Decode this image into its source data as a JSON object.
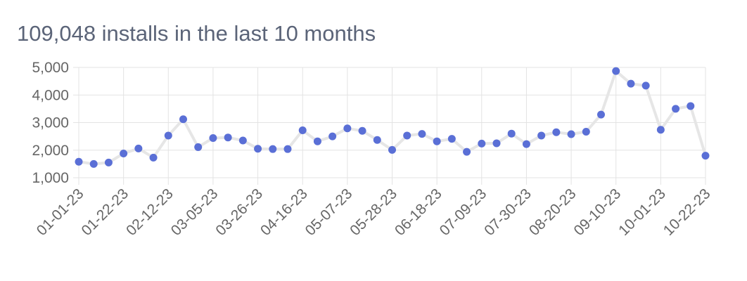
{
  "title": "109,048 installs in the last 10 months",
  "colors": {
    "title": "#5b6478",
    "point": "#5a6fd6",
    "line": "#e6e6e6",
    "grid": "#e3e3e3",
    "tick": "#666666"
  },
  "chart_data": {
    "type": "line",
    "title": "109,048 installs in the last 10 months",
    "xlabel": "",
    "ylabel": "",
    "ylim": [
      1000,
      5000
    ],
    "y_ticks": [
      1000,
      2000,
      3000,
      4000,
      5000
    ],
    "y_tick_labels": [
      "1,000",
      "2,000",
      "3,000",
      "4,000",
      "5,000"
    ],
    "grid": true,
    "legend": "none",
    "x_tick_labels": [
      "01-01-23",
      "01-22-23",
      "02-12-23",
      "03-05-23",
      "03-26-23",
      "04-16-23",
      "05-07-23",
      "05-28-23",
      "06-18-23",
      "07-09-23",
      "07-30-23",
      "08-20-23",
      "09-10-23",
      "10-01-23",
      "10-22-23"
    ],
    "x": [
      "01-01-23",
      "01-08-23",
      "01-15-23",
      "01-22-23",
      "01-29-23",
      "02-05-23",
      "02-12-23",
      "02-19-23",
      "02-26-23",
      "03-05-23",
      "03-12-23",
      "03-19-23",
      "03-26-23",
      "04-02-23",
      "04-09-23",
      "04-16-23",
      "04-23-23",
      "04-30-23",
      "05-07-23",
      "05-14-23",
      "05-21-23",
      "05-28-23",
      "06-04-23",
      "06-11-23",
      "06-18-23",
      "06-25-23",
      "07-02-23",
      "07-09-23",
      "07-16-23",
      "07-23-23",
      "07-30-23",
      "08-06-23",
      "08-13-23",
      "08-20-23",
      "08-27-23",
      "09-03-23",
      "09-10-23",
      "09-17-23",
      "09-24-23",
      "10-01-23",
      "10-08-23",
      "10-15-23",
      "10-22-23"
    ],
    "series": [
      {
        "values": [
          1580,
          1500,
          1550,
          1880,
          2060,
          1730,
          2530,
          3120,
          2110,
          2440,
          2460,
          2350,
          2050,
          2040,
          2040,
          2720,
          2320,
          2500,
          2790,
          2700,
          2370,
          2010,
          2530,
          2590,
          2320,
          2410,
          1940,
          2240,
          2250,
          2600,
          2220,
          2530,
          2650,
          2580,
          2670,
          3290,
          4870,
          4410,
          4340,
          2740,
          3500,
          3600,
          1800
        ]
      }
    ]
  }
}
